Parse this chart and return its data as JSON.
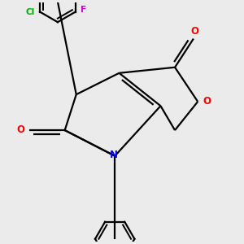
{
  "bg_color": "#ebebeb",
  "bond_color": "#000000",
  "bond_width": 1.6,
  "atom_colors": {
    "O_carbonyl": "#ff0000",
    "O_ether": "#ff0000",
    "N": "#0000ff",
    "Cl": "#00aa00",
    "F": "#cc00cc"
  },
  "figsize": [
    3.0,
    3.0
  ],
  "dpi": 100,
  "xlim": [
    -0.55,
    0.55
  ],
  "ylim": [
    -0.72,
    0.62
  ]
}
